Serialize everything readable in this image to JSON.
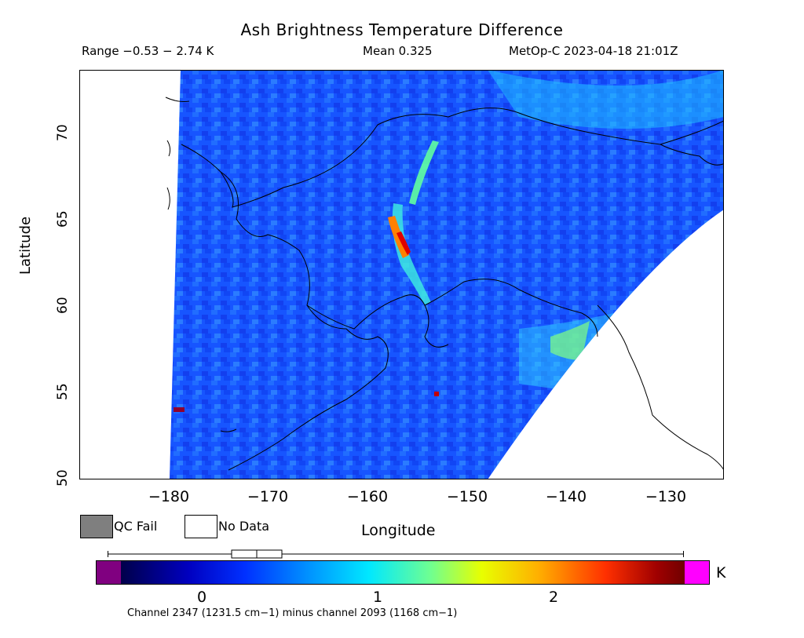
{
  "title": "Ash Brightness Temperature Difference",
  "stats": {
    "range": "Range −0.53 − 2.74 K",
    "mean": "Mean 0.325",
    "satellite_time": "MetOp-C 2023-04-18 21:01Z"
  },
  "axes": {
    "ylabel": "Latitude",
    "xlabel": "Longitude",
    "yticks": [
      "70",
      "65",
      "60",
      "55",
      "50"
    ],
    "xticks": [
      "−180",
      "−170",
      "−160",
      "−150",
      "−140",
      "−130"
    ]
  },
  "legend": {
    "qc_fail": "QC Fail",
    "no_data": "No Data",
    "qc_color": "#7f7f7f"
  },
  "colorbar": {
    "unit": "K",
    "ticks": [
      "0",
      "1",
      "2"
    ],
    "under_color": "#800080",
    "over_color": "#ff00ff",
    "caption": "Channel 2347 (1231.5 cm−1) minus channel 2093 (1168 cm−1)"
  }
}
